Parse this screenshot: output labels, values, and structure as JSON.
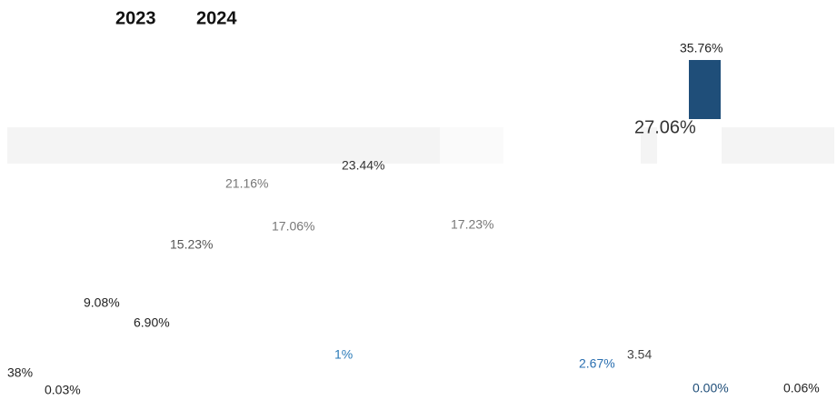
{
  "legend": [
    "2023",
    "2024"
  ],
  "labels": [
    "35.76%",
    "27.06%",
    "23.44%",
    "21.16%",
    "17.06%",
    "17.23%",
    "15.23%",
    "9.08%",
    "6.90%",
    "38%",
    "0.03%",
    "1%",
    "2.67%",
    "3.54",
    "0.00%",
    "0.06%"
  ]
}
